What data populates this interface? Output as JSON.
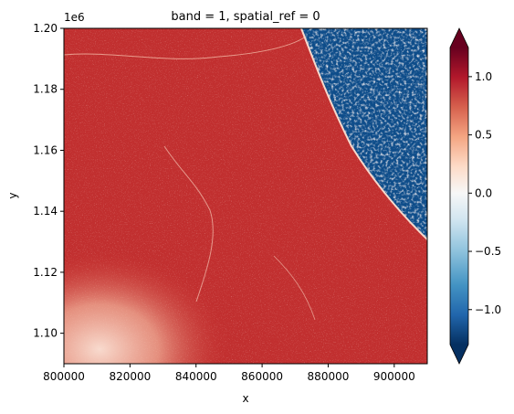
{
  "chart_data": {
    "type": "heatmap",
    "title": "band = 1, spatial_ref = 0",
    "xlabel": "x",
    "ylabel": "y",
    "y_offset_label": "1e6",
    "xlim": [
      800000,
      910000
    ],
    "ylim": [
      1090000,
      1200000
    ],
    "x_ticks": [
      800000,
      820000,
      840000,
      860000,
      880000,
      900000
    ],
    "x_tick_labels": [
      "800000",
      "820000",
      "840000",
      "860000",
      "880000",
      "900000"
    ],
    "y_ticks": [
      1100000,
      1120000,
      1140000,
      1160000,
      1180000,
      1200000
    ],
    "y_tick_labels": [
      "1.10",
      "1.12",
      "1.14",
      "1.16",
      "1.18",
      "1.20"
    ],
    "colorbar": {
      "colormap": "RdBu_r",
      "vmin": -1.3,
      "vmax": 1.25,
      "ticks": [
        -1.0,
        -0.5,
        0.0,
        0.5,
        1.0
      ],
      "tick_labels": [
        "−1.0",
        "−0.5",
        "0.0",
        "0.5",
        "1.0"
      ],
      "extend": "both"
    },
    "colormap_stops": [
      "#053061",
      "#2166ac",
      "#4393c3",
      "#92c5de",
      "#d1e5f0",
      "#f7f7f7",
      "#fddbc7",
      "#f4a582",
      "#d6604d",
      "#b2182b",
      "#67001f"
    ],
    "grid": false
  }
}
